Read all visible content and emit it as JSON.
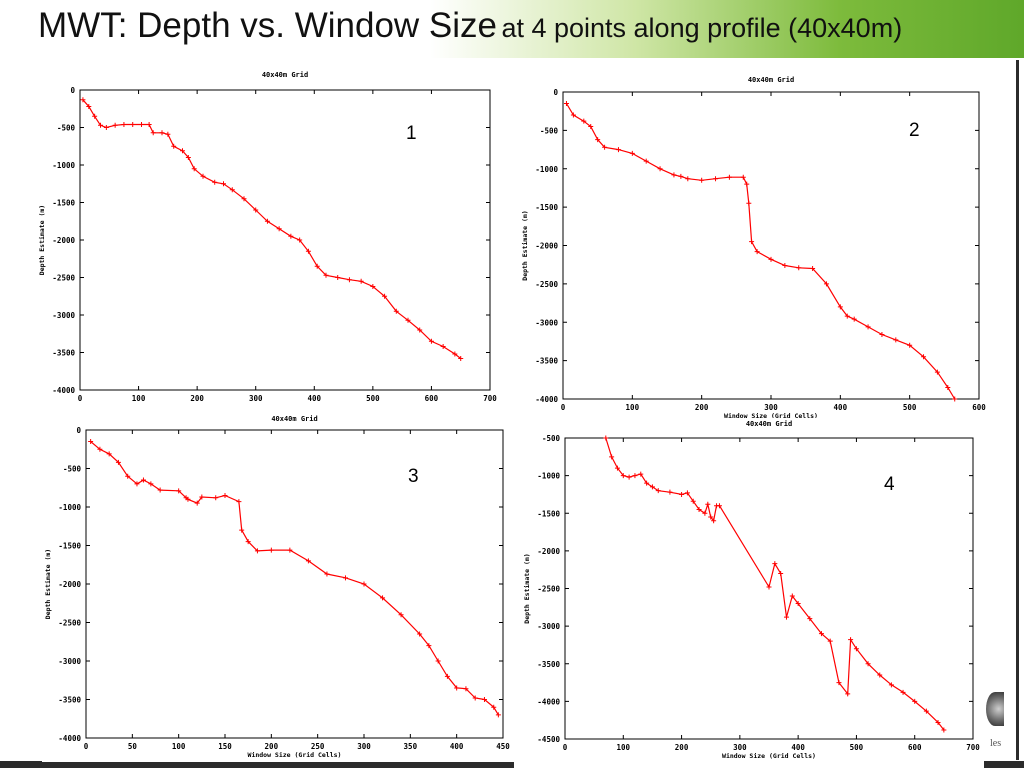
{
  "slide": {
    "title_main": "MWT: Depth vs. Window Size",
    "title_sub": "at 4 points along profile (40x40m)",
    "logo_text": "les"
  },
  "colors": {
    "series": "#ff0000",
    "accent_green": "#6cb033",
    "frame": "#2b2b2b"
  },
  "chart_data": [
    {
      "type": "line",
      "panel_number": "1",
      "title": "40x40m Grid",
      "xlabel": "",
      "ylabel": "Depth Estimate (m)",
      "xlim": [
        0,
        700
      ],
      "ylim": [
        -4000,
        0
      ],
      "xticks": [
        0,
        100,
        200,
        300,
        400,
        500,
        600,
        700
      ],
      "yticks": [
        0,
        -500,
        -1000,
        -1500,
        -2000,
        -2500,
        -3000,
        -3500,
        -4000
      ],
      "series": [
        {
          "color": "#ff0000",
          "x": [
            5,
            15,
            25,
            35,
            45,
            60,
            75,
            90,
            105,
            118,
            125,
            140,
            150,
            160,
            175,
            185,
            195,
            210,
            230,
            245,
            260,
            280,
            300,
            320,
            340,
            360,
            375,
            390,
            405,
            420,
            440,
            460,
            480,
            500,
            520,
            540,
            560,
            580,
            600,
            620,
            640,
            650
          ],
          "y": [
            -130,
            -220,
            -350,
            -470,
            -500,
            -470,
            -460,
            -460,
            -460,
            -460,
            -570,
            -570,
            -590,
            -750,
            -810,
            -900,
            -1050,
            -1150,
            -1230,
            -1250,
            -1330,
            -1450,
            -1600,
            -1750,
            -1850,
            -1950,
            -2000,
            -2150,
            -2350,
            -2470,
            -2500,
            -2530,
            -2550,
            -2620,
            -2750,
            -2950,
            -3070,
            -3200,
            -3350,
            -3420,
            -3520,
            -3580
          ]
        }
      ]
    },
    {
      "type": "line",
      "panel_number": "2",
      "title": "40x40m Grid",
      "xlabel": "Window Size (Grid Cells)",
      "ylabel": "Depth Estimate (m)",
      "xlim": [
        0,
        600
      ],
      "ylim": [
        -4000,
        0
      ],
      "xticks": [
        0,
        100,
        200,
        300,
        400,
        500,
        600
      ],
      "yticks": [
        0,
        -500,
        -1000,
        -1500,
        -2000,
        -2500,
        -3000,
        -3500,
        -4000
      ],
      "series": [
        {
          "color": "#ff0000",
          "x": [
            5,
            15,
            30,
            40,
            50,
            60,
            80,
            100,
            120,
            140,
            160,
            170,
            180,
            200,
            220,
            240,
            260,
            265,
            268,
            272,
            280,
            300,
            320,
            340,
            360,
            380,
            400,
            410,
            420,
            440,
            460,
            480,
            500,
            520,
            540,
            555,
            565
          ],
          "y": [
            -150,
            -300,
            -380,
            -450,
            -620,
            -720,
            -750,
            -800,
            -900,
            -1000,
            -1080,
            -1100,
            -1130,
            -1150,
            -1130,
            -1110,
            -1110,
            -1200,
            -1450,
            -1950,
            -2080,
            -2180,
            -2260,
            -2290,
            -2300,
            -2500,
            -2800,
            -2920,
            -2960,
            -3060,
            -3160,
            -3230,
            -3300,
            -3450,
            -3650,
            -3850,
            -4000
          ]
        }
      ]
    },
    {
      "type": "line",
      "panel_number": "3",
      "title": "40x40m Grid",
      "xlabel": "Window Size (Grid Cells)",
      "ylabel": "Depth Estimate (m)",
      "xlim": [
        0,
        450
      ],
      "ylim": [
        -4000,
        0
      ],
      "xticks": [
        0,
        50,
        100,
        150,
        200,
        250,
        300,
        350,
        400,
        450
      ],
      "yticks": [
        0,
        -500,
        -1000,
        -1500,
        -2000,
        -2500,
        -3000,
        -3500,
        -4000
      ],
      "series": [
        {
          "color": "#ff0000",
          "x": [
            5,
            15,
            25,
            35,
            45,
            55,
            62,
            70,
            80,
            100,
            108,
            110,
            120,
            125,
            140,
            150,
            165,
            168,
            175,
            185,
            200,
            220,
            240,
            260,
            280,
            300,
            320,
            340,
            360,
            370,
            380,
            390,
            400,
            410,
            420,
            430,
            440,
            445
          ],
          "y": [
            -150,
            -250,
            -310,
            -420,
            -600,
            -700,
            -650,
            -700,
            -780,
            -790,
            -880,
            -900,
            -950,
            -870,
            -880,
            -850,
            -930,
            -1300,
            -1450,
            -1570,
            -1560,
            -1560,
            -1700,
            -1870,
            -1920,
            -2000,
            -2180,
            -2400,
            -2650,
            -2800,
            -3000,
            -3200,
            -3350,
            -3360,
            -3480,
            -3500,
            -3600,
            -3700
          ]
        }
      ]
    },
    {
      "type": "line",
      "panel_number": "4",
      "title": "40x40m Grid",
      "xlabel": "Window Size (Grid Cells)",
      "ylabel": "Depth Estimate (m)",
      "xlim": [
        0,
        700
      ],
      "ylim": [
        -4500,
        -500
      ],
      "xticks": [
        0,
        100,
        200,
        300,
        400,
        500,
        600,
        700
      ],
      "yticks": [
        -500,
        -1000,
        -1500,
        -2000,
        -2500,
        -3000,
        -3500,
        -4000,
        -4500
      ],
      "series": [
        {
          "color": "#ff0000",
          "x": [
            70,
            80,
            90,
            100,
            110,
            120,
            130,
            140,
            150,
            160,
            180,
            200,
            210,
            220,
            230,
            240,
            245,
            250,
            255,
            260,
            265,
            350,
            360,
            370,
            380,
            390,
            400,
            420,
            440,
            455,
            470,
            485,
            490,
            500,
            520,
            540,
            560,
            580,
            600,
            620,
            640,
            650
          ],
          "y": [
            -500,
            -750,
            -900,
            -1000,
            -1020,
            -1000,
            -980,
            -1100,
            -1150,
            -1200,
            -1220,
            -1250,
            -1230,
            -1340,
            -1450,
            -1500,
            -1380,
            -1550,
            -1600,
            -1400,
            -1400,
            -2480,
            -2170,
            -2300,
            -2880,
            -2600,
            -2700,
            -2900,
            -3100,
            -3200,
            -3750,
            -3900,
            -3180,
            -3300,
            -3500,
            -3650,
            -3780,
            -3880,
            -4000,
            -4130,
            -4280,
            -4380
          ]
        }
      ]
    }
  ]
}
